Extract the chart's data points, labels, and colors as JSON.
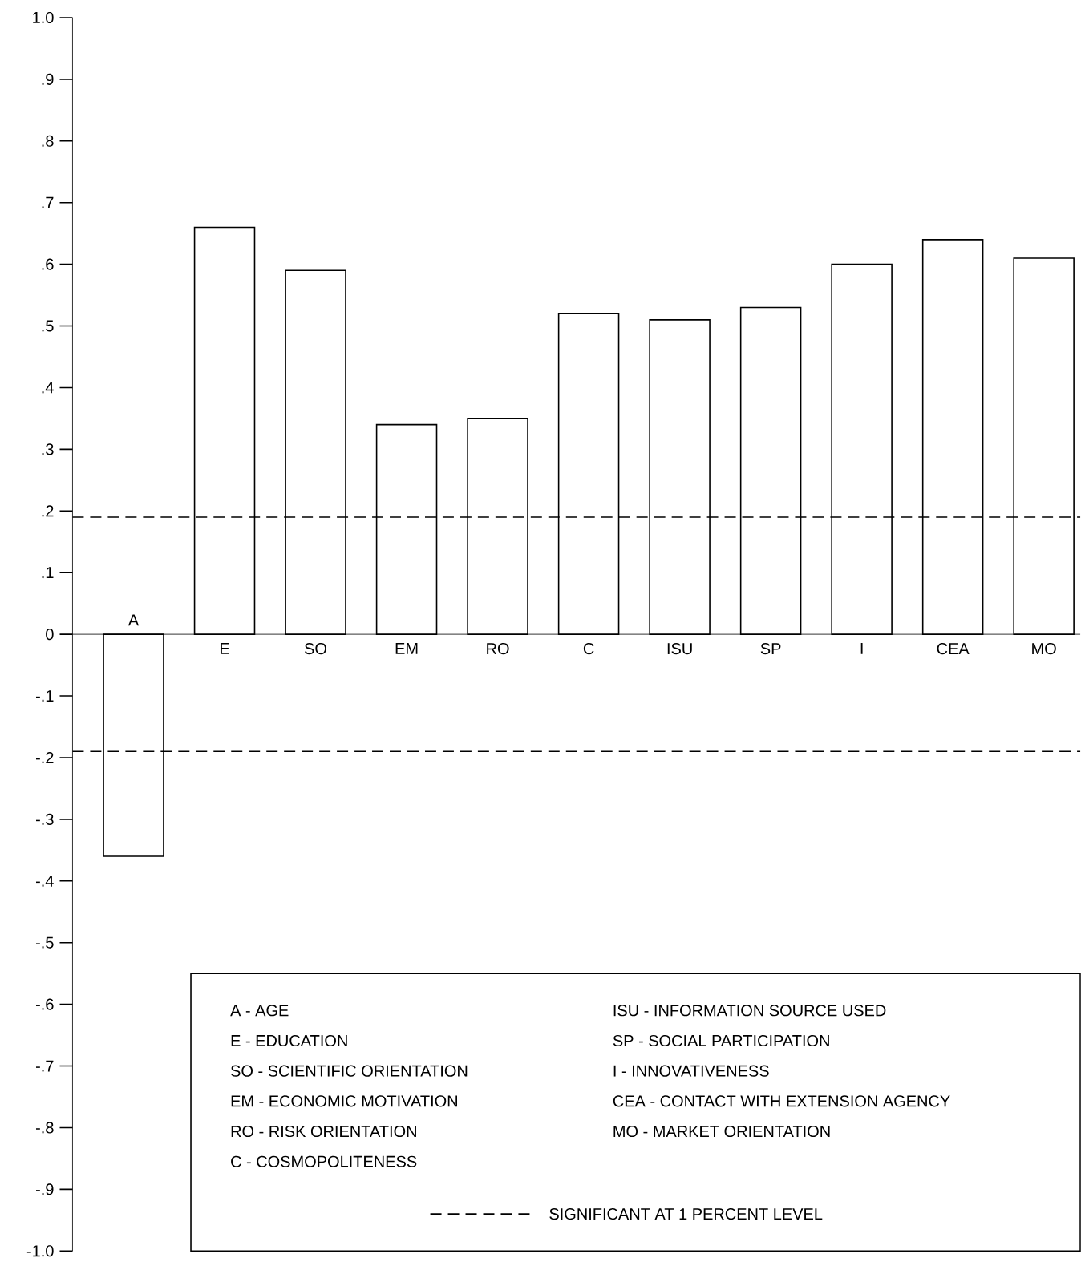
{
  "chart_data": {
    "type": "bar",
    "categories": [
      "A",
      "E",
      "SO",
      "EM",
      "RO",
      "C",
      "ISU",
      "SP",
      "I",
      "CEA",
      "MO"
    ],
    "values": [
      -0.36,
      0.66,
      0.59,
      0.34,
      0.35,
      0.52,
      0.51,
      0.53,
      0.6,
      0.64,
      0.61
    ],
    "color": "#ffffff",
    "ylim": [
      -1.0,
      1.0
    ],
    "yticks": [
      {
        "value": 1.0,
        "label": "1.0"
      },
      {
        "value": 0.9,
        "label": ".9"
      },
      {
        "value": 0.8,
        "label": ".8"
      },
      {
        "value": 0.7,
        "label": ".7"
      },
      {
        "value": 0.6,
        "label": ".6"
      },
      {
        "value": 0.5,
        "label": ".5"
      },
      {
        "value": 0.4,
        "label": ".4"
      },
      {
        "value": 0.3,
        "label": ".3"
      },
      {
        "value": 0.2,
        "label": ".2"
      },
      {
        "value": 0.1,
        "label": ".1"
      },
      0,
      {
        "value": -0.1,
        "label": "-.1"
      },
      {
        "value": -0.2,
        "label": "-.2"
      },
      {
        "value": -0.3,
        "label": "-.3"
      },
      {
        "value": -0.4,
        "label": "-.4"
      },
      {
        "value": -0.5,
        "label": "-.5"
      },
      {
        "value": -0.6,
        "label": "-.6"
      },
      {
        "value": -0.7,
        "label": "-.7"
      },
      {
        "value": -0.8,
        "label": "-.8"
      },
      {
        "value": -0.9,
        "label": "-.9"
      },
      {
        "value": -1.0,
        "label": "-1.0"
      }
    ],
    "ref_lines": [
      {
        "axis": "y",
        "value": 0.19,
        "label": "SIGNIFICANT AT 1 PERCENT LEVEL",
        "color": "#000000",
        "line_style": "dashed"
      },
      {
        "axis": "y",
        "value": -0.19,
        "color": "#000000",
        "line_style": "dashed"
      }
    ],
    "annotations": [
      "A - AGE",
      "E - EDUCATION",
      "SO - SCIENTIFIC ORIENTATION",
      "EM - ECONOMIC MOTIVATION",
      "RO - RISK ORIENTATION",
      "C - COSMOPOLITENESS",
      "ISU - INFORMATION SOURCE USED",
      "SP - SOCIAL PARTICIPATION",
      "I - INNOVATIVENESS",
      "CEA - CONTACT WITH EXTENSION AGENCY",
      "MO - MARKET ORIENTATION"
    ]
  }
}
